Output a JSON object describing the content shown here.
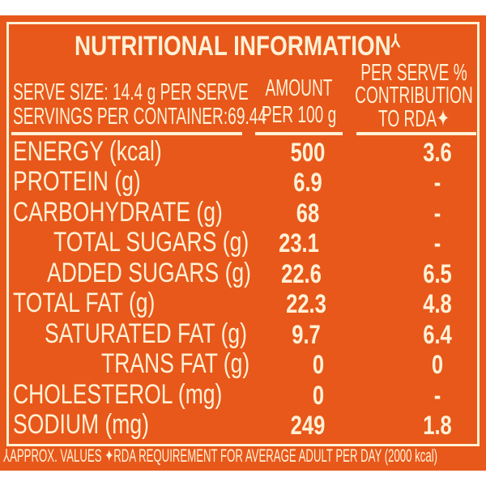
{
  "title": "NUTRITIONAL INFORMATION",
  "title_mark": "⅄",
  "header": {
    "serve_size": "SERVE SIZE: 14.4 g PER SERVE",
    "servings": "SERVINGS PER CONTAINER:69.44",
    "amount_line1": "AMOUNT",
    "amount_line2": "PER 100 g",
    "rda_line1": "PER SERVE %",
    "rda_line2": "CONTRIBUTION",
    "rda_line3": "TO RDA✦"
  },
  "rows": [
    {
      "label": "ENERGY (kcal)",
      "amount": "500",
      "rda": "3.6"
    },
    {
      "label": "PROTEIN (g)",
      "amount": "6.9",
      "rda": "-"
    },
    {
      "label": "CARBOHYDRATE (g)",
      "amount": "68",
      "rda": "-"
    },
    {
      "label": "TOTAL SUGARS (g)",
      "amount": "23.1",
      "rda": "-"
    },
    {
      "label": "ADDED SUGARS (g)",
      "amount": "22.6",
      "rda": "6.5"
    },
    {
      "label": "TOTAL FAT (g)",
      "amount": "22.3",
      "rda": "4.8"
    },
    {
      "label": "SATURATED FAT (g)",
      "amount": "9.7",
      "rda": "6.4"
    },
    {
      "label": "TRANS FAT (g)",
      "amount": "0",
      "rda": "0"
    },
    {
      "label": "CHOLESTEROL (mg)",
      "amount": "0",
      "rda": "-"
    },
    {
      "label": "SODIUM (mg)",
      "amount": "249",
      "rda": "1.8"
    }
  ],
  "footnote": "⅄APPROX. VALUES ✦RDA REQUIREMENT FOR AVERAGE ADULT PER DAY (2000 kcal)",
  "colors": {
    "background": "#E8581A",
    "text": "#FFF1D6"
  }
}
